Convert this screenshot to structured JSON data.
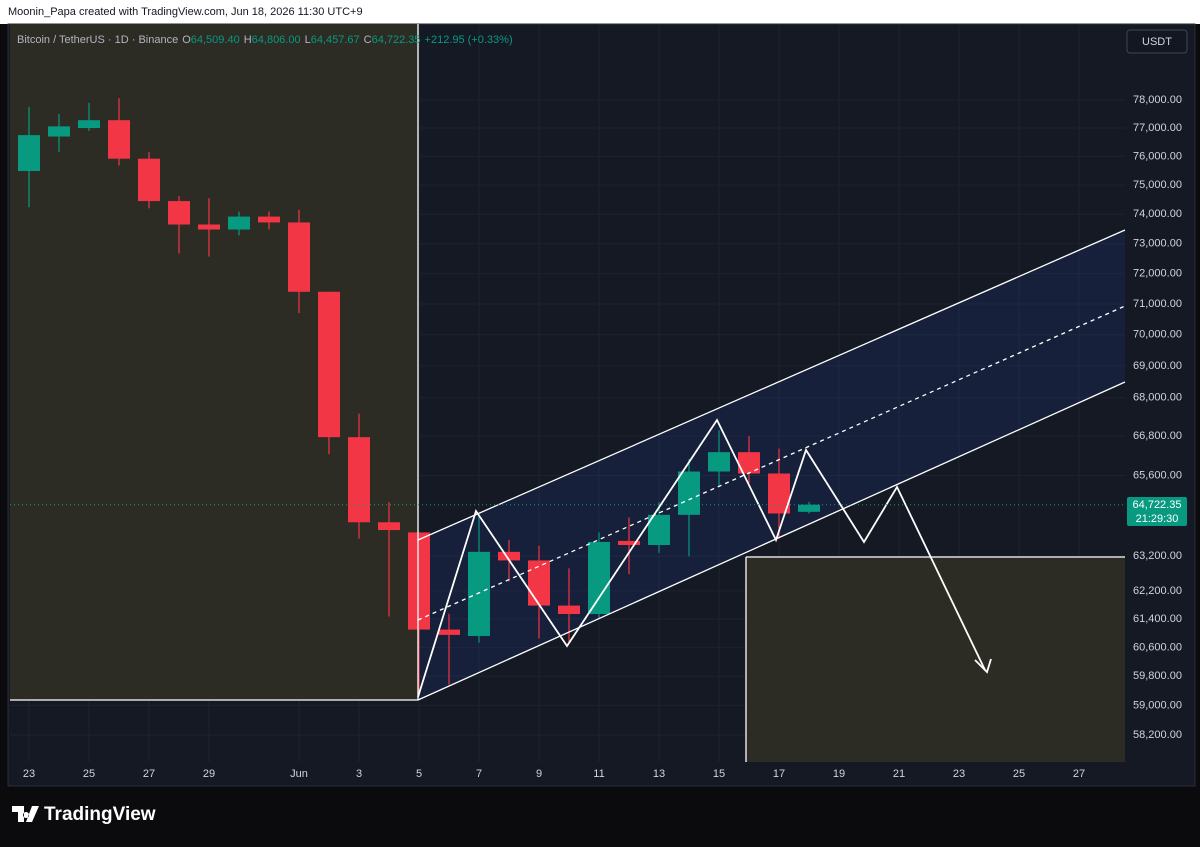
{
  "caption": "Moonin_Papa created with TradingView.com, Jun 18, 2026 11:30 UTC+9",
  "branding": "TradingView",
  "chart_data": {
    "type": "candlestick",
    "legend": {
      "symbol": "Bitcoin / TetherUS · 1D · Binance",
      "o": "O",
      "open": "64,509.40",
      "h": "H",
      "high": "64,806.00",
      "l": "L",
      "low": "64,457.67",
      "c": "C",
      "close": "64,722.35",
      "change": "+212.95 (+0.33%)"
    },
    "currency": "USDT",
    "last_price_label": "64,722.35",
    "countdown": "21:29:30",
    "log": true,
    "grid": true,
    "up_color": "#089981",
    "down_color": "#f23645",
    "categories": [
      "23",
      null,
      "25",
      null,
      "27",
      null,
      "29",
      null,
      null,
      "Jun",
      null,
      "3",
      null,
      "5",
      null,
      "7",
      null,
      "9",
      null,
      "11",
      null,
      "13",
      null,
      "15",
      null,
      "17",
      null,
      "19",
      null,
      "21",
      null,
      "23",
      null,
      "25",
      null,
      "27",
      null
    ],
    "open": [
      75490,
      76700,
      77000,
      77280,
      75920,
      74450,
      73650,
      73480,
      73920,
      73720,
      71400,
      66770,
      64200,
      63900,
      61100,
      60920,
      63330,
      63080,
      61780,
      61540,
      63650,
      63530,
      64420,
      65720,
      66310,
      65660,
      64509.4,
      null,
      null,
      null,
      null,
      null,
      null,
      null,
      null,
      null,
      null
    ],
    "high": [
      77750,
      77500,
      77900,
      78070,
      76150,
      74620,
      74550,
      74090,
      74090,
      74150,
      71400,
      67500,
      64800,
      63900,
      61550,
      64400,
      63680,
      63510,
      62850,
      63900,
      64340,
      64800,
      66100,
      66980,
      66800,
      66420,
      64806,
      null,
      null,
      null,
      null,
      null,
      null,
      null,
      null,
      null,
      null
    ],
    "low": [
      74240,
      76150,
      76900,
      75680,
      74200,
      72670,
      72570,
      73280,
      73480,
      70700,
      66250,
      63720,
      61470,
      59260,
      59570,
      60730,
      62470,
      60850,
      60760,
      61400,
      62680,
      63300,
      63200,
      65300,
      65380,
      63720,
      64457.67,
      null,
      null,
      null,
      null,
      null,
      null,
      null,
      null,
      null,
      null
    ],
    "close": [
      76750,
      77060,
      77280,
      75920,
      74450,
      73650,
      73480,
      73920,
      73720,
      71400,
      66770,
      64200,
      63970,
      61100,
      60950,
      63330,
      63080,
      61780,
      61540,
      63620,
      63530,
      64420,
      65720,
      66310,
      65660,
      64460,
      64722.35,
      null,
      null,
      null,
      null,
      null,
      null,
      null,
      null,
      null,
      null
    ],
    "ylim": [
      57480,
      80860
    ],
    "yticks": [
      {
        "value": 78000,
        "label": "78,000.00"
      },
      {
        "value": 77000,
        "label": "77,000.00"
      },
      {
        "value": 76000,
        "label": "76,000.00"
      },
      {
        "value": 75000,
        "label": "75,000.00"
      },
      {
        "value": 74000,
        "label": "74,000.00"
      },
      {
        "value": 73000,
        "label": "73,000.00"
      },
      {
        "value": 72000,
        "label": "72,000.00"
      },
      {
        "value": 71000,
        "label": "71,000.00"
      },
      {
        "value": 70000,
        "label": "70,000.00"
      },
      {
        "value": 69000,
        "label": "69,000.00"
      },
      {
        "value": 68000,
        "label": "68,000.00"
      },
      {
        "value": 66800,
        "label": "66,800.00"
      },
      {
        "value": 65600,
        "label": "65,600.00"
      },
      {
        "value": 63200,
        "label": "63,200.00"
      },
      {
        "value": 62200,
        "label": "62,200.00"
      },
      {
        "value": 61400,
        "label": "61,400.00"
      },
      {
        "value": 60600,
        "label": "60,600.00"
      },
      {
        "value": 59800,
        "label": "59,800.00"
      },
      {
        "value": 59000,
        "label": "59,000.00"
      },
      {
        "value": 58200,
        "label": "58,200.00"
      }
    ]
  }
}
